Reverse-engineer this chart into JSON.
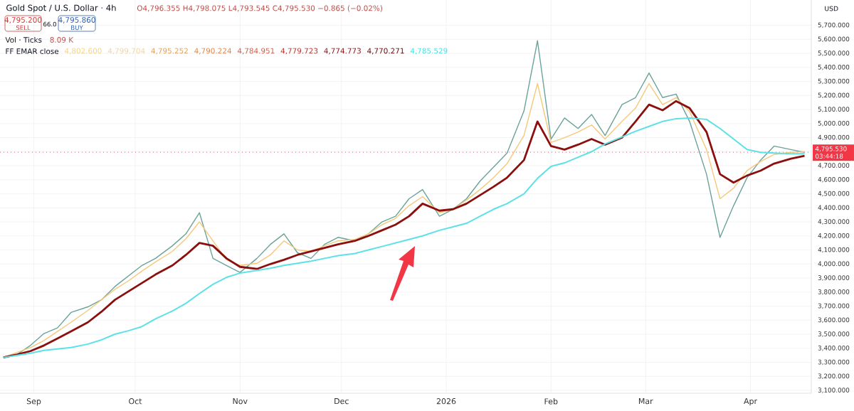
{
  "chart_data": {
    "type": "line",
    "x": [
      "2025-08-23",
      "2025-08-27",
      "2025-08-31",
      "2025-09-04",
      "2025-09-08",
      "2025-09-12",
      "2025-09-17",
      "2025-09-21",
      "2025-09-25",
      "2025-09-29",
      "2025-10-03",
      "2025-10-07",
      "2025-10-12",
      "2025-10-16",
      "2025-10-20",
      "2025-10-24",
      "2025-10-28",
      "2025-11-01",
      "2025-11-06",
      "2025-11-10",
      "2025-11-14",
      "2025-11-18",
      "2025-11-22",
      "2025-11-26",
      "2025-11-30",
      "2025-12-05",
      "2025-12-09",
      "2025-12-13",
      "2025-12-17",
      "2025-12-21",
      "2025-12-25",
      "2025-12-30",
      "2026-01-03",
      "2026-01-07",
      "2026-01-11",
      "2026-01-15",
      "2026-01-19",
      "2026-01-24",
      "2026-01-28",
      "2026-02-01",
      "2026-02-05",
      "2026-02-09",
      "2026-02-13",
      "2026-02-17",
      "2026-02-22",
      "2026-02-26",
      "2026-03-02",
      "2026-03-06",
      "2026-03-10",
      "2026-03-14",
      "2026-03-19",
      "2026-03-23",
      "2026-03-27",
      "2026-03-31",
      "2026-04-04",
      "2026-04-08",
      "2026-04-13",
      "2026-04-17"
    ],
    "series": [
      {
        "color": "#6aa39b",
        "values": [
          3335,
          3355,
          3420,
          3505,
          3545,
          3655,
          3695,
          3745,
          3840,
          3915,
          3990,
          4040,
          4130,
          4215,
          4365,
          4040,
          3990,
          3940,
          4040,
          4140,
          4215,
          4080,
          4040,
          4140,
          4190,
          4165,
          4215,
          4300,
          4340,
          4465,
          4530,
          4340,
          4390,
          4465,
          4590,
          4690,
          4790,
          5090,
          5590,
          4890,
          5040,
          4965,
          5065,
          4915,
          5135,
          5185,
          5360,
          5185,
          5210,
          5015,
          4640,
          4190,
          4415,
          4615,
          4740,
          4840,
          4815,
          4795
        ]
      },
      {
        "color": "#f6c87a",
        "values": [
          3335,
          3370,
          3405,
          3455,
          3520,
          3585,
          3670,
          3745,
          3820,
          3880,
          3950,
          4015,
          4090,
          4180,
          4300,
          4165,
          4030,
          3990,
          4005,
          4065,
          4165,
          4100,
          4090,
          4130,
          4165,
          4175,
          4215,
          4280,
          4325,
          4415,
          4480,
          4365,
          4390,
          4455,
          4530,
          4615,
          4715,
          4915,
          5285,
          4865,
          4900,
          4940,
          4990,
          4890,
          5015,
          5110,
          5285,
          5135,
          5185,
          5085,
          4815,
          4465,
          4540,
          4665,
          4730,
          4780,
          4795,
          4800
        ]
      },
      {
        "color": "#8b0f0f",
        "values": [
          3335,
          3355,
          3380,
          3420,
          3470,
          3520,
          3585,
          3660,
          3745,
          3805,
          3865,
          3925,
          3990,
          4065,
          4150,
          4130,
          4040,
          3980,
          3965,
          4000,
          4030,
          4065,
          4090,
          4115,
          4140,
          4165,
          4200,
          4240,
          4280,
          4340,
          4430,
          4380,
          4390,
          4430,
          4490,
          4550,
          4615,
          4740,
          5015,
          4840,
          4815,
          4850,
          4890,
          4850,
          4900,
          5015,
          5135,
          5095,
          5160,
          5110,
          4940,
          4640,
          4580,
          4630,
          4665,
          4715,
          4750,
          4770
        ]
      },
      {
        "color": "#5ce1e6",
        "values": [
          3335,
          3350,
          3365,
          3385,
          3395,
          3405,
          3430,
          3460,
          3500,
          3525,
          3555,
          3610,
          3665,
          3720,
          3790,
          3855,
          3905,
          3935,
          3955,
          3970,
          3990,
          4005,
          4020,
          4040,
          4060,
          4075,
          4100,
          4125,
          4150,
          4175,
          4200,
          4240,
          4265,
          4290,
          4340,
          4390,
          4430,
          4500,
          4610,
          4695,
          4720,
          4760,
          4800,
          4855,
          4905,
          4945,
          4980,
          5015,
          5035,
          5040,
          5030,
          4965,
          4890,
          4815,
          4795,
          4790,
          4785,
          4785
        ]
      }
    ],
    "xlim": [
      "2025-08-22",
      "2026-04-19"
    ],
    "xticks": [
      {
        "value": "2025-09-01",
        "label": "Sep"
      },
      {
        "value": "2025-10-01",
        "label": "Oct"
      },
      {
        "value": "2025-11-01",
        "label": "Nov"
      },
      {
        "value": "2025-12-01",
        "label": "Dec"
      },
      {
        "value": "2026-01-01",
        "label": "2026"
      },
      {
        "value": "2026-02-01",
        "label": "Feb"
      },
      {
        "value": "2026-03-01",
        "label": "Mar"
      },
      {
        "value": "2026-04-01",
        "label": "Apr"
      }
    ],
    "ylim": [
      3080,
      5880
    ],
    "yticks": [
      {
        "value": 3100,
        "label": "3,100.000"
      },
      {
        "value": 3200,
        "label": "3,200.000"
      },
      {
        "value": 3300,
        "label": "3,300.000"
      },
      {
        "value": 3400,
        "label": "3,400.000"
      },
      {
        "value": 3500,
        "label": "3,500.000"
      },
      {
        "value": 3600,
        "label": "3,600.000"
      },
      {
        "value": 3700,
        "label": "3,700.000"
      },
      {
        "value": 3800,
        "label": "3,800.000"
      },
      {
        "value": 3900,
        "label": "3,900.000"
      },
      {
        "value": 4000,
        "label": "4,000.000"
      },
      {
        "value": 4100,
        "label": "4,100.000"
      },
      {
        "value": 4200,
        "label": "4,200.000"
      },
      {
        "value": 4300,
        "label": "4,300.000"
      },
      {
        "value": 4400,
        "label": "4,400.000"
      },
      {
        "value": 4500,
        "label": "4,500.000"
      },
      {
        "value": 4600,
        "label": "4,600.000"
      },
      {
        "value": 4700,
        "label": "4,700.000"
      },
      {
        "value": 4800,
        "label": null
      },
      {
        "value": 4900,
        "label": "4,900.000"
      },
      {
        "value": 5000,
        "label": "5,000.000"
      },
      {
        "value": 5100,
        "label": "5,100.000"
      },
      {
        "value": 5200,
        "label": "5,200.000"
      },
      {
        "value": 5300,
        "label": "5,300.000"
      },
      {
        "value": 5400,
        "label": "5,400.000"
      },
      {
        "value": 5500,
        "label": "5,500.000"
      },
      {
        "value": 5600,
        "label": "5,600.000"
      },
      {
        "value": 5700,
        "label": "5,700.000"
      }
    ],
    "grid": true,
    "ref_lines": [
      {
        "axis": "y",
        "value": 4795.53,
        "label": "4,795.530",
        "color": "#f23645",
        "line_style": "dotted"
      }
    ],
    "annotations": [
      "Gold Spot / U.S. Dollar · 4h",
      "O4,796.355 H4,798.075 L4,793.545 C4,795.530 −0.865 (−0.02%)",
      "4,795.200",
      "SELL",
      "66.0",
      "4,795.860",
      "BUY",
      "Vol · Ticks",
      "8.09 K",
      "FF EMAR close",
      "4,802.600",
      "4,799.704",
      "4,795.252",
      "4,790.224",
      "4,784.951",
      "4,779.723",
      "4,774.773",
      "4,770.271",
      "4,785.529",
      "USD",
      "03:44:18"
    ]
  }
}
